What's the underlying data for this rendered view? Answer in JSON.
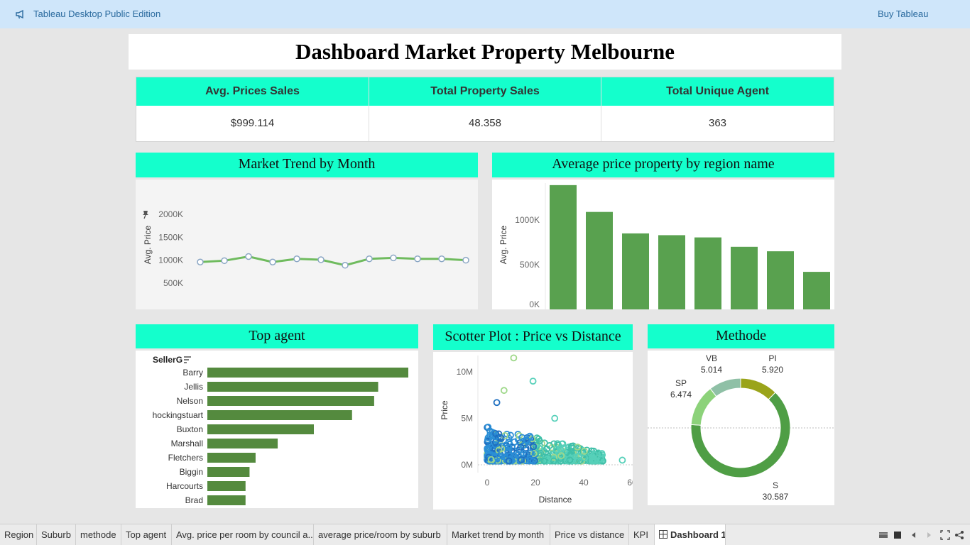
{
  "app": {
    "title": "Tableau Desktop Public Edition",
    "buy_label": "Buy Tableau"
  },
  "dashboard": {
    "title": "Dashboard Market Property Melbourne"
  },
  "kpis": [
    {
      "label": "Avg. Prices Sales",
      "value": "$999.114"
    },
    {
      "label": "Total Property Sales",
      "value": "48.358"
    },
    {
      "label": "Total Unique Agent",
      "value": "363"
    }
  ],
  "colors": {
    "accent": "#14ffcc",
    "bar": "#59a14f",
    "agent_bar": "#548a3e",
    "line": "#6fbb5e"
  },
  "market_trend": {
    "title": "Market Trend by Month",
    "chart_data": {
      "type": "line",
      "ylabel": "Avg. Price",
      "yticks": [
        "500K",
        "1000K",
        "1500K",
        "2000K"
      ],
      "ylim": [
        0,
        2000000
      ],
      "values": [
        960000,
        990000,
        1080000,
        960000,
        1030000,
        1010000,
        890000,
        1030000,
        1050000,
        1030000,
        1030000,
        1000000
      ]
    }
  },
  "region_price": {
    "title": "Average price property by region name",
    "chart_data": {
      "type": "bar",
      "ylabel": "Avg. Price",
      "yticks": [
        "0K",
        "500K",
        "1000K"
      ],
      "ylim": [
        0,
        1400000
      ],
      "values": [
        1390000,
        1090000,
        850000,
        830000,
        805000,
        700000,
        650000,
        420000
      ]
    }
  },
  "top_agent": {
    "title": "Top agent",
    "header": "SellerG",
    "chart_data": {
      "type": "bar",
      "orientation": "horizontal",
      "categories": [
        "Barry",
        "Jellis",
        "Nelson",
        "hockingstuart",
        "Buxton",
        "Marshall",
        "Fletchers",
        "Biggin",
        "Harcourts",
        "Brad"
      ],
      "values": [
        100,
        85,
        83,
        72,
        53,
        35,
        24,
        21,
        19,
        19
      ]
    }
  },
  "scatter": {
    "title": "Scotter Plot : Price vs Distance",
    "chart_data": {
      "type": "scatter",
      "xlabel": "Distance",
      "ylabel": "Price",
      "xticks": [
        "0",
        "20",
        "40",
        "60"
      ],
      "yticks": [
        "0M",
        "5M",
        "10M"
      ],
      "xlim": [
        -4,
        60
      ],
      "ylim": [
        0,
        11000000
      ]
    }
  },
  "methode": {
    "title": "Methode",
    "chart_data": {
      "type": "pie",
      "slices": [
        {
          "name": "PI",
          "value": 5.92,
          "label": "5.920",
          "color": "#9aa41a"
        },
        {
          "name": "S",
          "value": 30.587,
          "label": "30.587",
          "color": "#4f9e45"
        },
        {
          "name": "SP",
          "value": 6.474,
          "label": "6.474",
          "color": "#8cd27a"
        },
        {
          "name": "VB",
          "value": 5.014,
          "label": "5.014",
          "color": "#8fc0a6"
        }
      ]
    }
  },
  "tabs": [
    {
      "label": "Region"
    },
    {
      "label": "Suburb"
    },
    {
      "label": "methode"
    },
    {
      "label": "Top agent"
    },
    {
      "label": "Avg. price per room by council a..."
    },
    {
      "label": "average price/room by suburb"
    },
    {
      "label": "Market trend by month"
    },
    {
      "label": "Price vs distance"
    },
    {
      "label": "KPI"
    },
    {
      "label": "Dashboard 1",
      "active": true
    }
  ]
}
